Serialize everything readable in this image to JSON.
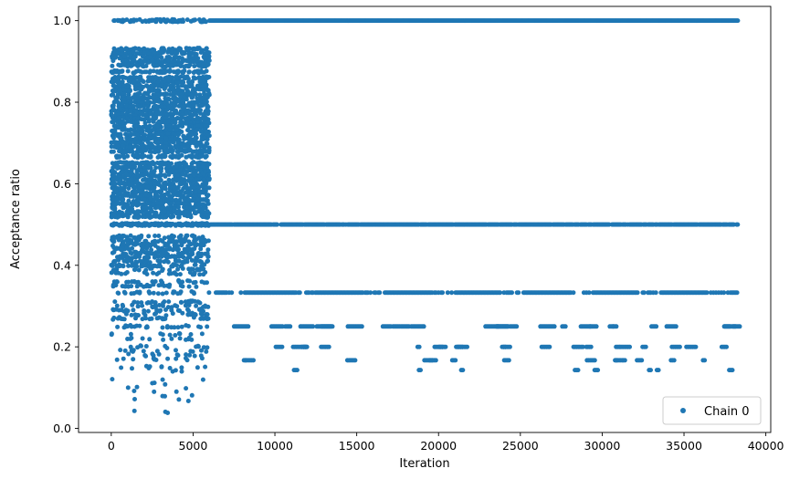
{
  "chart_data": {
    "type": "scatter",
    "xlabel": "Iteration",
    "ylabel": "Acceptance ratio",
    "xlim": [
      -2000,
      40300
    ],
    "ylim": [
      -0.01,
      1.035
    ],
    "xticks": [
      0,
      5000,
      10000,
      15000,
      20000,
      25000,
      30000,
      35000,
      40000
    ],
    "xtick_labels": [
      "0",
      "5000",
      "10000",
      "15000",
      "20000",
      "25000",
      "30000",
      "35000",
      "40000"
    ],
    "yticks": [
      0.0,
      0.2,
      0.4,
      0.6,
      0.8,
      1.0
    ],
    "ytick_labels": [
      "0.0",
      "0.2",
      "0.4",
      "0.6",
      "0.8",
      "1.0"
    ],
    "grid": false,
    "legend": {
      "placement": "bottom-right",
      "entries": [
        "Chain 0"
      ]
    },
    "series": [
      {
        "name": "Chain 0",
        "color": "#1f77b4",
        "marker": "circle",
        "x_range": [
          0,
          38300
        ],
        "segments": [
          {
            "x_range": [
              0,
              6000
            ],
            "description": "burn-in: dense spread of ratios",
            "y_values": [
              1.0,
              0.93,
              0.92,
              0.91,
              0.9,
              0.89,
              0.875,
              0.86,
              0.85,
              0.84,
              0.83,
              0.82,
              0.81,
              0.8,
              0.79,
              0.78,
              0.77,
              0.76,
              0.75,
              0.74,
              0.73,
              0.72,
              0.71,
              0.7,
              0.69,
              0.68,
              0.667,
              0.65,
              0.64,
              0.63,
              0.62,
              0.61,
              0.6,
              0.59,
              0.58,
              0.57,
              0.56,
              0.55,
              0.54,
              0.53,
              0.52,
              0.5,
              0.47,
              0.46,
              0.45,
              0.44,
              0.43,
              0.42,
              0.41,
              0.4,
              0.39,
              0.38,
              0.36,
              0.35,
              0.333,
              0.31,
              0.3,
              0.29,
              0.28,
              0.27,
              0.25,
              0.23,
              0.22,
              0.2,
              0.19,
              0.18,
              0.17,
              0.15,
              0.14,
              0.12,
              0.11,
              0.1,
              0.09,
              0.08,
              0.07,
              0.04
            ]
          },
          {
            "x_range": [
              6000,
              38300
            ],
            "y_values": [
              1.0,
              0.5,
              0.333,
              0.25,
              0.2,
              0.167,
              0.143
            ]
          }
        ]
      }
    ]
  }
}
